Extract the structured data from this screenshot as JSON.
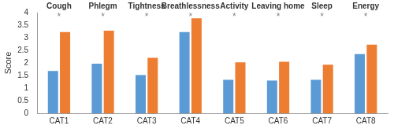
{
  "chart_data": {
    "type": "bar",
    "categories": [
      "CAT1",
      "CAT2",
      "CAT3",
      "CAT4",
      "CAT5",
      "CAT6",
      "CAT7",
      "CAT8"
    ],
    "group_labels": [
      "Cough",
      "Phlegm",
      "Tightness",
      "Breathlessness",
      "Activity",
      "Leaving home",
      "Sleep",
      "Energy"
    ],
    "annotations": [
      {
        "category": "CAT1",
        "text": "*"
      },
      {
        "category": "CAT2",
        "text": "*"
      },
      {
        "category": "CAT3",
        "text": "*"
      },
      {
        "category": "CAT4",
        "text": "*"
      },
      {
        "category": "CAT5",
        "text": "*"
      },
      {
        "category": "CAT6",
        "text": "*"
      },
      {
        "category": "CAT7",
        "text": "*"
      },
      {
        "category": "CAT8",
        "text": "*"
      }
    ],
    "series": [
      {
        "color": "#5b9bd5",
        "values": [
          1.68,
          1.97,
          1.52,
          3.23,
          1.33,
          1.3,
          1.33,
          2.35
        ]
      },
      {
        "color": "#ed7d31",
        "values": [
          3.23,
          3.28,
          2.2,
          3.77,
          2.02,
          2.05,
          1.93,
          2.73
        ]
      }
    ],
    "y_label": "Score",
    "ylim": [
      0,
      4
    ],
    "yticks": [
      0,
      0.5,
      1,
      1.5,
      2,
      2.5,
      3,
      3.5,
      4
    ],
    "grid": false
  }
}
